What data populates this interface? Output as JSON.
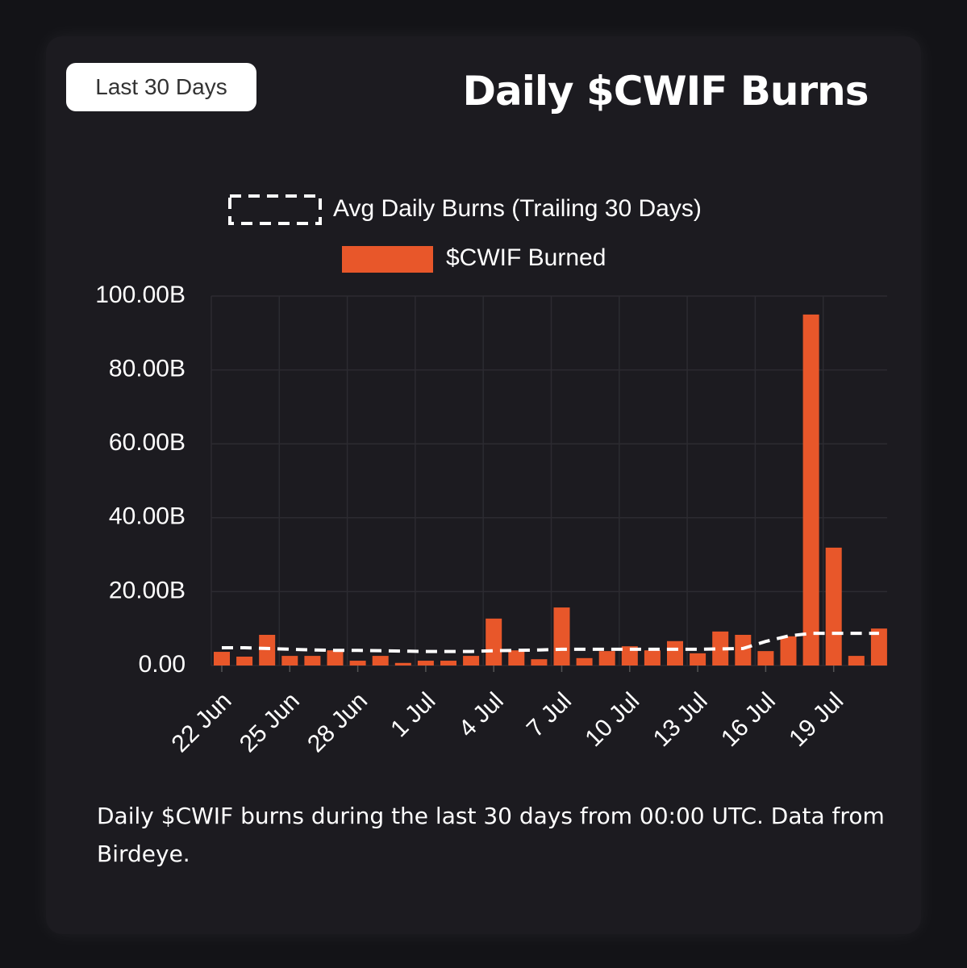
{
  "chart_data": {
    "type": "bar",
    "button": "Last 30 Days",
    "title": "Daily $CWIF Burns",
    "caption": "Daily $CWIF burns during the last 30 days from 00:00 UTC. Data from Birdeye.",
    "categories": [
      "22 Jun",
      null,
      null,
      "25 Jun",
      null,
      null,
      "28 Jun",
      null,
      null,
      "1 Jul",
      null,
      null,
      "4 Jul",
      null,
      null,
      "7 Jul",
      null,
      null,
      "10 Jul",
      null,
      null,
      "13 Jul",
      null,
      null,
      "16 Jul",
      null,
      null,
      "19 Jul",
      null,
      null
    ],
    "series": [
      {
        "name": "Avg Daily Burns (Trailing 30 Days)",
        "type": "line",
        "color": "#ffffff",
        "values": [
          4.8,
          4.8,
          4.6,
          4.4,
          4.2,
          4.1,
          4.1,
          4.0,
          3.9,
          3.8,
          3.8,
          3.8,
          4.0,
          4.1,
          4.2,
          4.4,
          4.4,
          4.4,
          4.4,
          4.4,
          4.4,
          4.4,
          4.5,
          4.6,
          6.5,
          8.0,
          8.7,
          8.7,
          8.7,
          8.7
        ]
      },
      {
        "name": "$CWIF Burned",
        "type": "bar",
        "color": "#e8572a",
        "values": [
          3.7,
          2.4,
          8.3,
          2.6,
          2.6,
          4.1,
          1.3,
          2.6,
          0.7,
          1.3,
          1.3,
          2.6,
          12.7,
          4.1,
          1.7,
          15.7,
          2.0,
          3.9,
          5.2,
          4.1,
          6.6,
          3.3,
          9.2,
          8.3,
          3.9,
          7.9,
          95.0,
          31.9,
          2.6,
          10.0
        ]
      }
    ],
    "ylim": [
      0,
      100
    ],
    "yticks": [
      {
        "value": 0,
        "label": "0.00"
      },
      {
        "value": 20,
        "label": "20.00B"
      },
      {
        "value": 40,
        "label": "40.00B"
      },
      {
        "value": 60,
        "label": "60.00B"
      },
      {
        "value": 80,
        "label": "80.00B"
      },
      {
        "value": 100,
        "label": "100.00B"
      }
    ],
    "grid": true
  }
}
